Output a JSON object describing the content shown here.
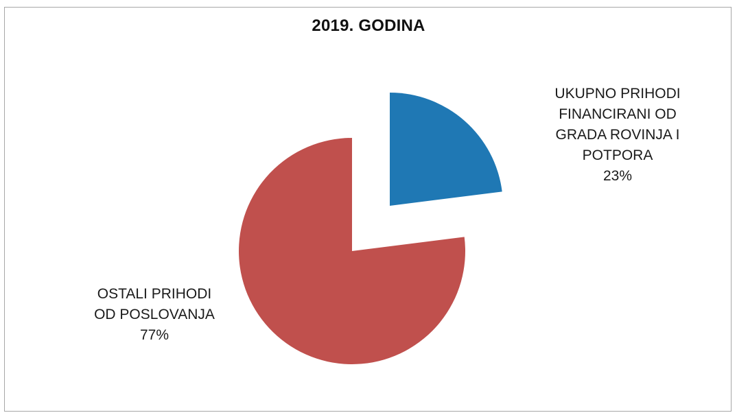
{
  "chart_data": {
    "type": "pie",
    "title": "2019. GODINA",
    "slices": [
      {
        "label_lines": [
          "OSTALI PRIHODI",
          "OD POSLOVANJA"
        ],
        "percent_label": "77%",
        "value": 77,
        "color": "#c0504d"
      },
      {
        "label_lines": [
          "UKUPNO PRIHODI",
          "FINANCIRANI OD",
          "GRADA ROVINJA I",
          "POTPORA"
        ],
        "percent_label": "23%",
        "value": 23,
        "color": "#1f78b4"
      }
    ],
    "exploded": true,
    "legend": "none"
  }
}
